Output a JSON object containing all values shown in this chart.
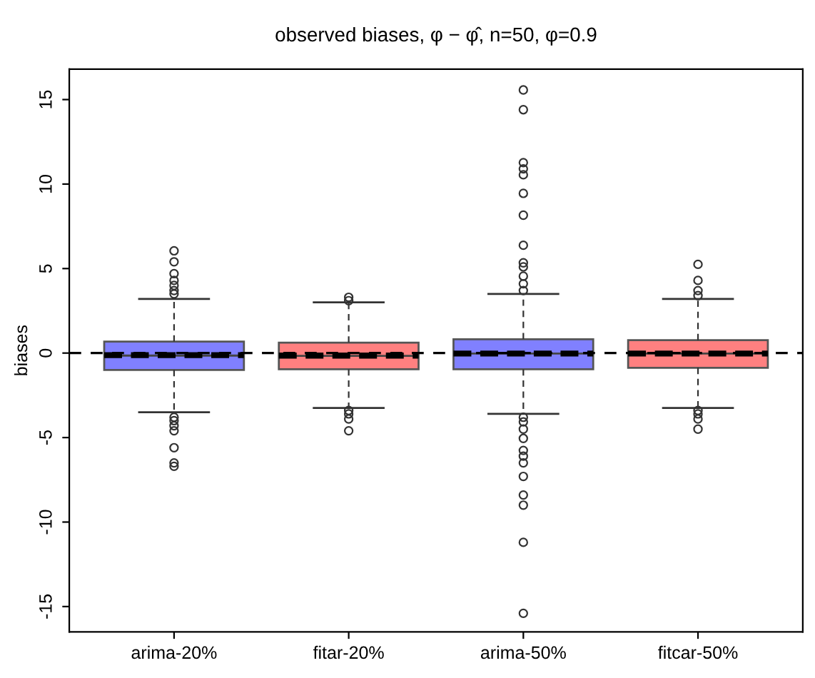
{
  "chart_data": {
    "type": "box",
    "title": "observed biases, φ − φ̂, n=50, φ=0.9",
    "ylabel": "biases",
    "categories": [
      "arima-20%",
      "fitar-20%",
      "arima-50%",
      "fitcar-50%"
    ],
    "colors": [
      "#8080ff",
      "#ff8080",
      "#8080ff",
      "#ff8080"
    ],
    "boxes": [
      {
        "low": -3.5,
        "q1": -1.0,
        "median": -0.15,
        "q3": 0.68,
        "high": 3.2,
        "mean": -0.12,
        "outliers": [
          6.05,
          5.4,
          4.7,
          4.3,
          4.0,
          3.7,
          3.5,
          -3.8,
          -4.0,
          -4.3,
          -4.6,
          -5.6,
          -6.5,
          -6.7
        ]
      },
      {
        "low": -3.25,
        "q1": -0.96,
        "median": -0.17,
        "q3": 0.62,
        "high": 3.0,
        "mean": -0.15,
        "outliers": [
          3.3,
          3.1,
          -3.4,
          -3.6,
          -3.9,
          -4.6
        ]
      },
      {
        "low": -3.6,
        "q1": -0.96,
        "median": -0.03,
        "q3": 0.82,
        "high": 3.5,
        "mean": -0.03,
        "outliers": [
          15.57,
          14.4,
          11.27,
          10.9,
          10.55,
          9.45,
          8.16,
          6.38,
          5.34,
          5.1,
          4.55,
          4.1,
          3.7,
          -3.8,
          -4.07,
          -4.5,
          -5.05,
          -5.76,
          -6.1,
          -6.5,
          -7.3,
          -8.4,
          -9.0,
          -11.2,
          -15.4
        ]
      },
      {
        "low": -3.25,
        "q1": -0.87,
        "median": -0.03,
        "q3": 0.76,
        "high": 3.2,
        "mean": -0.03,
        "outliers": [
          5.25,
          4.3,
          3.7,
          3.4,
          -3.4,
          -3.6,
          -3.9,
          -4.5
        ]
      }
    ],
    "ylim": [
      -16.5,
      16.8
    ],
    "yticks": [
      -15,
      -10,
      -5,
      0,
      5,
      10,
      15
    ],
    "ref_lines": [
      {
        "axis": "y",
        "value": 0,
        "label": null,
        "line_style": "dashed",
        "color": "#000000"
      }
    ],
    "grid": false,
    "legend": false
  }
}
